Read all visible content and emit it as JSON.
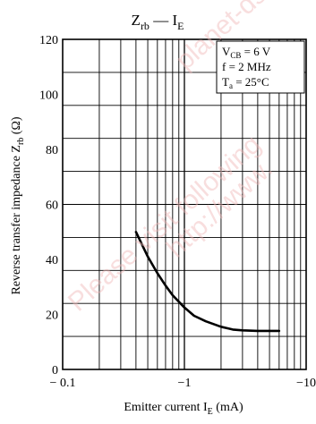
{
  "chart_data": {
    "type": "line",
    "title_main": "Z",
    "title_sub": "rb",
    "title_sep": " — ",
    "title_main2": "I",
    "title_sub2": "E",
    "ylabel_main": "Reverse transfer impedance  Z",
    "ylabel_sub": "rb",
    "ylabel_unit": "  (Ω)",
    "xlabel_main": "Emitter current  I",
    "xlabel_sub": "E",
    "xlabel_unit": "  (mA)",
    "x_scale": "log",
    "xlim": [
      -0.1,
      -10
    ],
    "ylim": [
      0,
      120
    ],
    "x_ticks": [
      "− 0.1",
      "−1",
      "−10"
    ],
    "y_ticks": [
      "0",
      "20",
      "40",
      "60",
      "80",
      "100",
      "120"
    ],
    "grid": true,
    "conditions": [
      {
        "main": "V",
        "sub": "CB",
        "rest": " = 6 V"
      },
      {
        "main": "f = 2 MHz",
        "sub": "",
        "rest": ""
      },
      {
        "main": "T",
        "sub": "a",
        "rest": " = 25°C"
      }
    ],
    "series": [
      {
        "color": "#000000",
        "x": [
          -0.4,
          -0.5,
          -0.6,
          -0.7,
          -0.8,
          -1.0,
          -1.2,
          -1.5,
          -2.0,
          -2.5,
          -3.0,
          -4.0,
          -5.0,
          -6.0
        ],
        "y": [
          50,
          41,
          35,
          30.5,
          27,
          22.5,
          19.5,
          17.5,
          15.5,
          14.5,
          14.2,
          14.0,
          14.0,
          14.0
        ]
      }
    ]
  },
  "watermark": [
    "Please visit following",
    "http://www.",
    "planet-ds"
  ]
}
